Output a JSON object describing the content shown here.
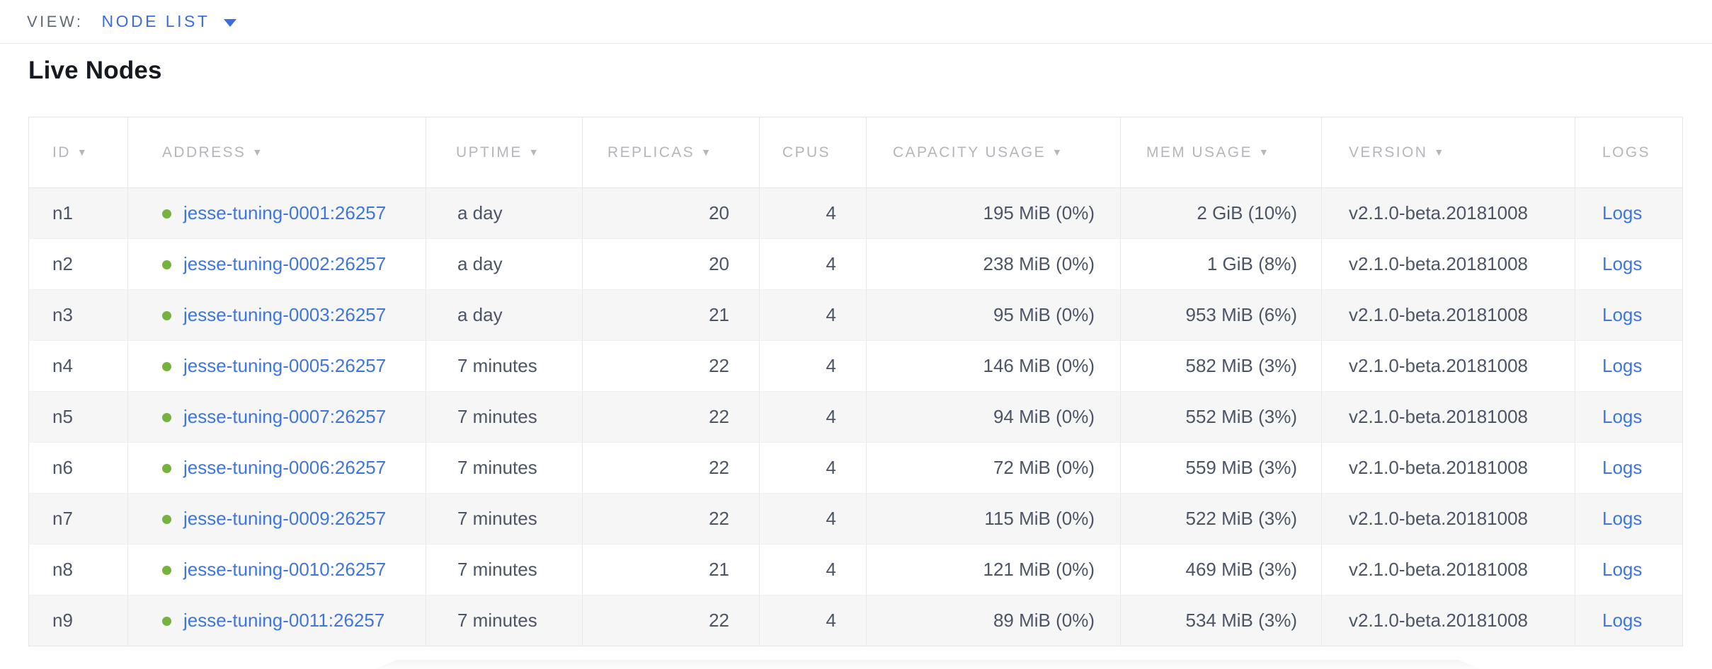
{
  "view_bar": {
    "label": "VIEW:",
    "selected": "NODE LIST"
  },
  "page": {
    "title": "Live Nodes"
  },
  "table": {
    "columns": [
      {
        "label": "ID",
        "sortable": true
      },
      {
        "label": "ADDRESS",
        "sortable": true
      },
      {
        "label": "UPTIME",
        "sortable": true
      },
      {
        "label": "REPLICAS",
        "sortable": true
      },
      {
        "label": "CPUS",
        "sortable": false
      },
      {
        "label": "CAPACITY USAGE",
        "sortable": true
      },
      {
        "label": "MEM USAGE",
        "sortable": true
      },
      {
        "label": "VERSION",
        "sortable": true
      },
      {
        "label": "LOGS",
        "sortable": false
      }
    ],
    "rows": [
      {
        "id": "n1",
        "status": "live",
        "address": "jesse-tuning-0001:26257",
        "uptime": "a day",
        "replicas": "20",
        "cpus": "4",
        "capacity_usage": "195 MiB (0%)",
        "mem_usage": "2 GiB (10%)",
        "version": "v2.1.0-beta.20181008",
        "logs_label": "Logs"
      },
      {
        "id": "n2",
        "status": "live",
        "address": "jesse-tuning-0002:26257",
        "uptime": "a day",
        "replicas": "20",
        "cpus": "4",
        "capacity_usage": "238 MiB (0%)",
        "mem_usage": "1 GiB (8%)",
        "version": "v2.1.0-beta.20181008",
        "logs_label": "Logs"
      },
      {
        "id": "n3",
        "status": "live",
        "address": "jesse-tuning-0003:26257",
        "uptime": "a day",
        "replicas": "21",
        "cpus": "4",
        "capacity_usage": "95 MiB (0%)",
        "mem_usage": "953 MiB (6%)",
        "version": "v2.1.0-beta.20181008",
        "logs_label": "Logs"
      },
      {
        "id": "n4",
        "status": "live",
        "address": "jesse-tuning-0005:26257",
        "uptime": "7 minutes",
        "replicas": "22",
        "cpus": "4",
        "capacity_usage": "146 MiB (0%)",
        "mem_usage": "582 MiB (3%)",
        "version": "v2.1.0-beta.20181008",
        "logs_label": "Logs"
      },
      {
        "id": "n5",
        "status": "live",
        "address": "jesse-tuning-0007:26257",
        "uptime": "7 minutes",
        "replicas": "22",
        "cpus": "4",
        "capacity_usage": "94 MiB (0%)",
        "mem_usage": "552 MiB (3%)",
        "version": "v2.1.0-beta.20181008",
        "logs_label": "Logs"
      },
      {
        "id": "n6",
        "status": "live",
        "address": "jesse-tuning-0006:26257",
        "uptime": "7 minutes",
        "replicas": "22",
        "cpus": "4",
        "capacity_usage": "72 MiB (0%)",
        "mem_usage": "559 MiB (3%)",
        "version": "v2.1.0-beta.20181008",
        "logs_label": "Logs"
      },
      {
        "id": "n7",
        "status": "live",
        "address": "jesse-tuning-0009:26257",
        "uptime": "7 minutes",
        "replicas": "22",
        "cpus": "4",
        "capacity_usage": "115 MiB (0%)",
        "mem_usage": "522 MiB (3%)",
        "version": "v2.1.0-beta.20181008",
        "logs_label": "Logs"
      },
      {
        "id": "n8",
        "status": "live",
        "address": "jesse-tuning-0010:26257",
        "uptime": "7 minutes",
        "replicas": "21",
        "cpus": "4",
        "capacity_usage": "121 MiB (0%)",
        "mem_usage": "469 MiB (3%)",
        "version": "v2.1.0-beta.20181008",
        "logs_label": "Logs"
      },
      {
        "id": "n9",
        "status": "live",
        "address": "jesse-tuning-0011:26257",
        "uptime": "7 minutes",
        "replicas": "22",
        "cpus": "4",
        "capacity_usage": "89 MiB (0%)",
        "mem_usage": "534 MiB (3%)",
        "version": "v2.1.0-beta.20181008",
        "logs_label": "Logs"
      }
    ]
  },
  "icons": {
    "sort_arrow": "▼",
    "live_status_dot": "green-dot"
  },
  "colors": {
    "accent_blue": "#3b6ce0",
    "link_blue": "#3f76dd",
    "live_green": "#77b13e",
    "header_gray": "#b4b6b9",
    "cell_text": "#4c5566",
    "row_stripe": "#f6f6f7"
  }
}
